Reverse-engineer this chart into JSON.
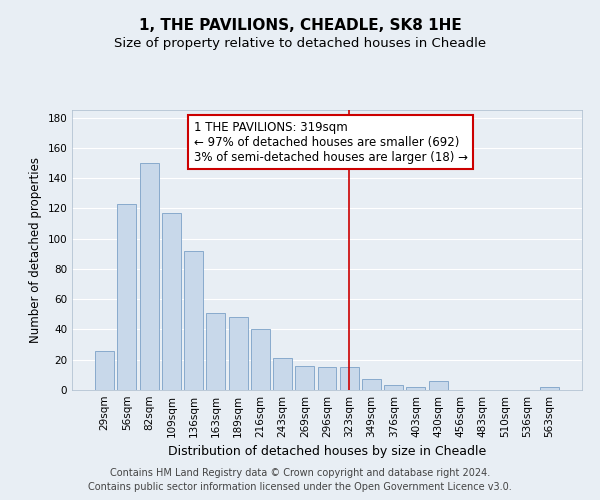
{
  "title": "1, THE PAVILIONS, CHEADLE, SK8 1HE",
  "subtitle": "Size of property relative to detached houses in Cheadle",
  "xlabel": "Distribution of detached houses by size in Cheadle",
  "ylabel": "Number of detached properties",
  "categories": [
    "29sqm",
    "56sqm",
    "82sqm",
    "109sqm",
    "136sqm",
    "163sqm",
    "189sqm",
    "216sqm",
    "243sqm",
    "269sqm",
    "296sqm",
    "323sqm",
    "349sqm",
    "376sqm",
    "403sqm",
    "430sqm",
    "456sqm",
    "483sqm",
    "510sqm",
    "536sqm",
    "563sqm"
  ],
  "values": [
    26,
    123,
    150,
    117,
    92,
    51,
    48,
    40,
    21,
    16,
    15,
    15,
    7,
    3,
    2,
    6,
    0,
    0,
    0,
    0,
    2
  ],
  "bar_color": "#c8d8ea",
  "bar_edge_color": "#88aacc",
  "highlight_line_index": 11,
  "vline_color": "#cc0000",
  "annotation_text": "1 THE PAVILIONS: 319sqm\n← 97% of detached houses are smaller (692)\n3% of semi-detached houses are larger (18) →",
  "annotation_box_facecolor": "#ffffff",
  "annotation_box_edgecolor": "#cc0000",
  "ylim": [
    0,
    185
  ],
  "yticks": [
    0,
    20,
    40,
    60,
    80,
    100,
    120,
    140,
    160,
    180
  ],
  "background_color": "#e8eef4",
  "grid_color": "#ffffff",
  "title_fontsize": 11,
  "subtitle_fontsize": 9.5,
  "xlabel_fontsize": 9,
  "ylabel_fontsize": 8.5,
  "tick_fontsize": 7.5,
  "annotation_fontsize": 8.5,
  "footer_fontsize": 7,
  "footer_line1": "Contains HM Land Registry data © Crown copyright and database right 2024.",
  "footer_line2": "Contains public sector information licensed under the Open Government Licence v3.0."
}
